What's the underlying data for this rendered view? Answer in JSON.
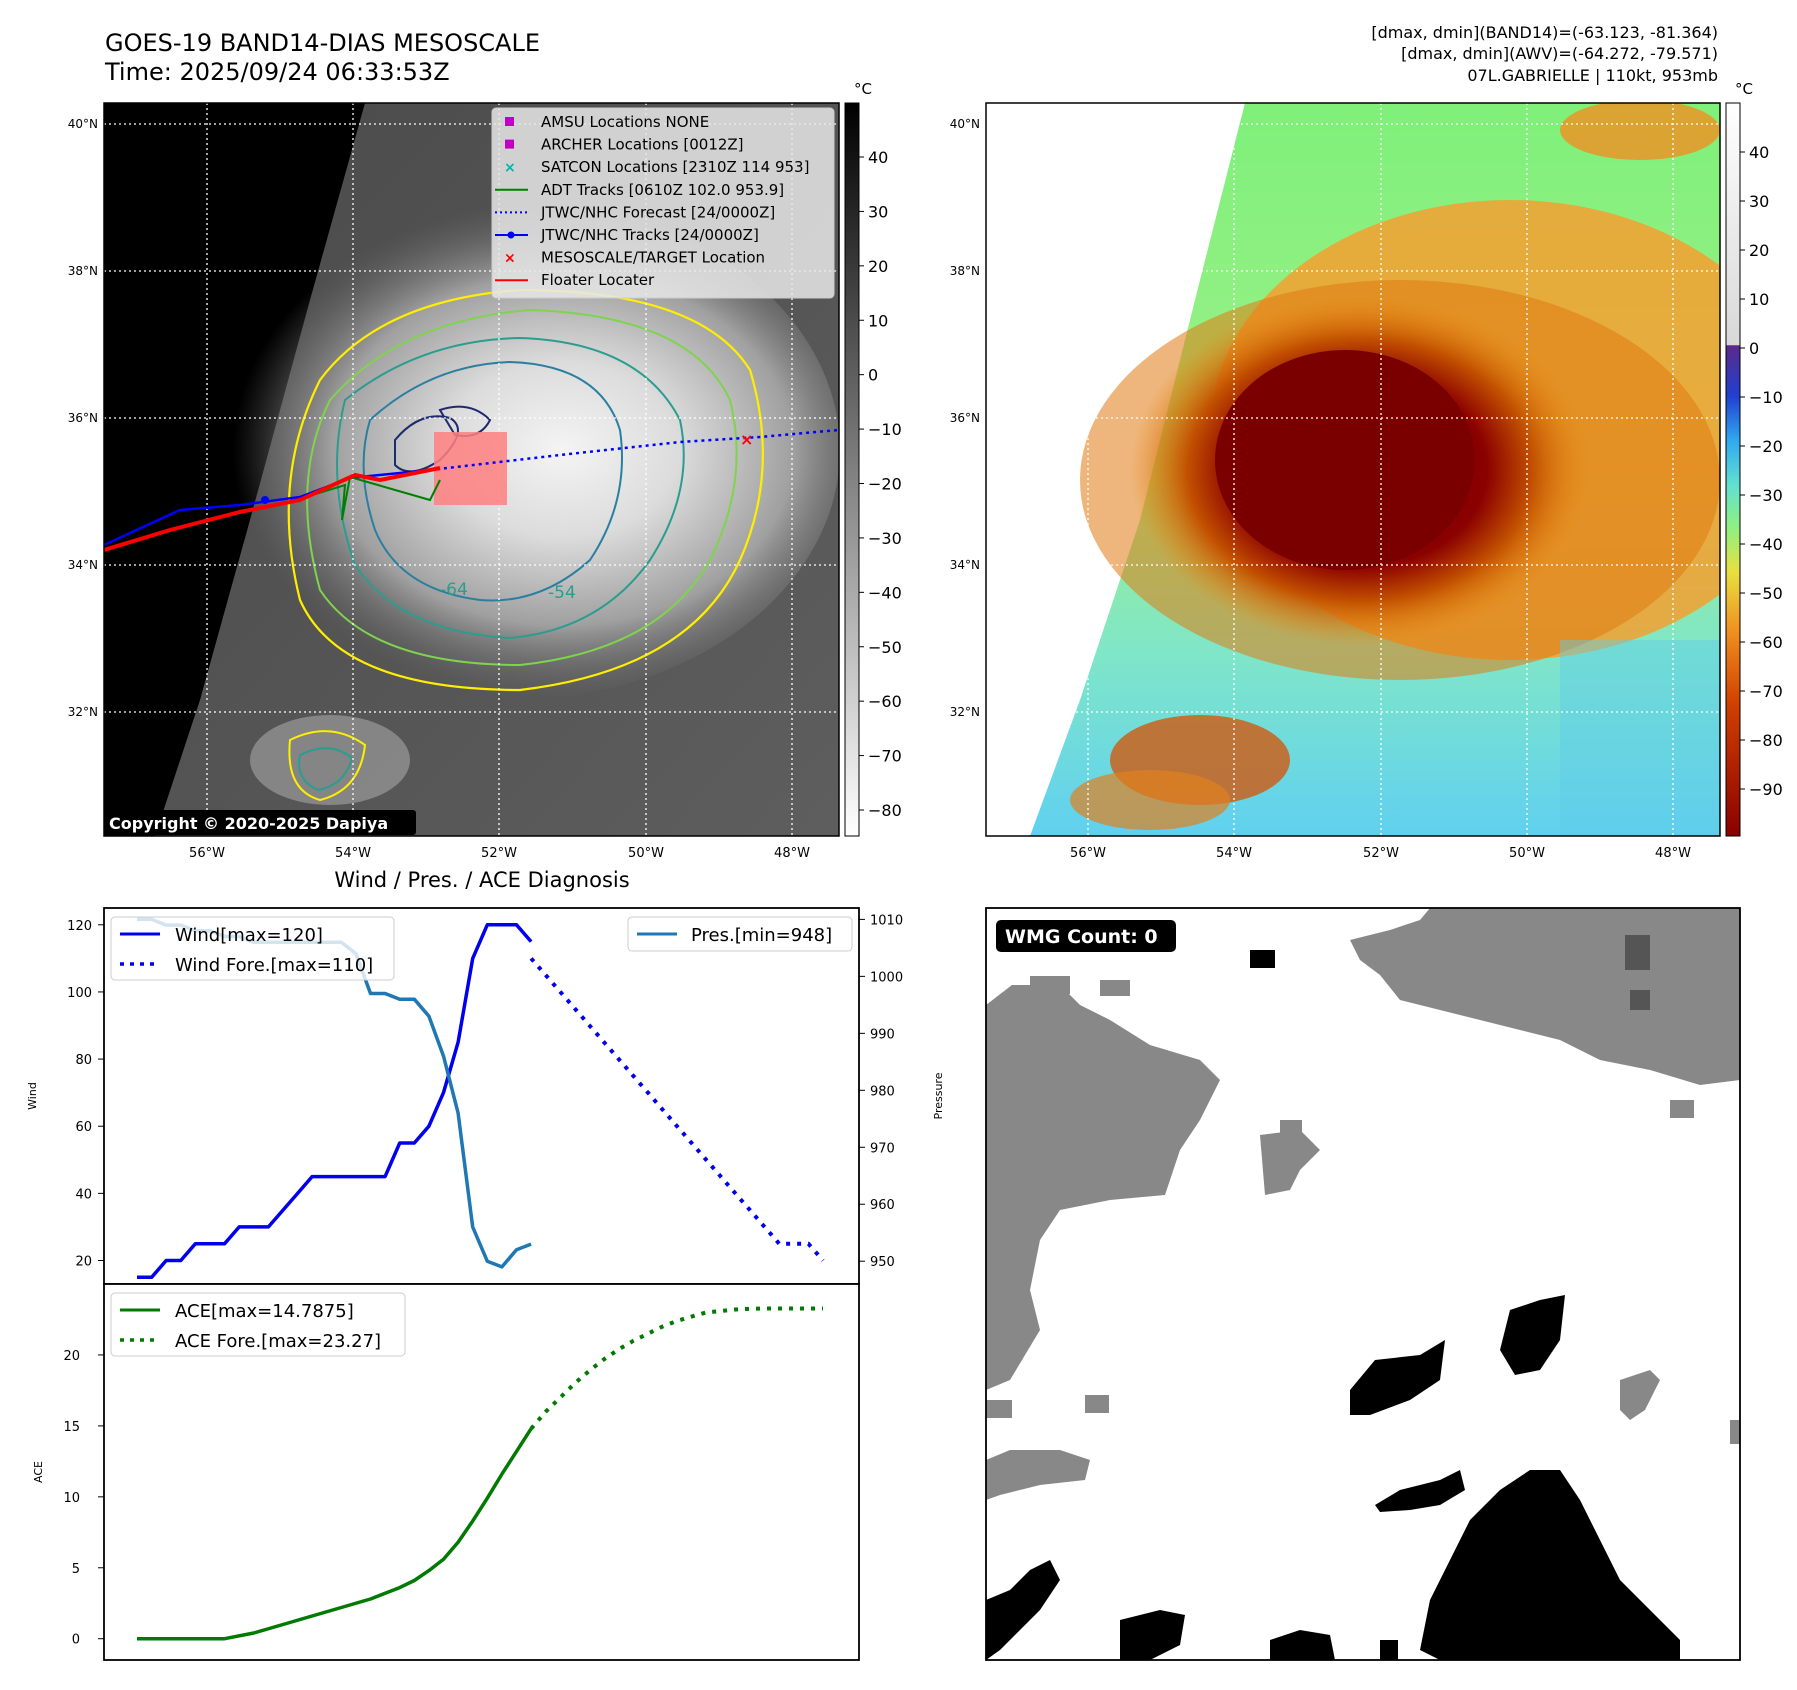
{
  "header": {
    "title_line1": "GOES-19 BAND14-DIAS MESOSCALE",
    "title_line2": "Time: 2025/09/24 06:33:53Z",
    "right_line1": "[dmax, dmin](BAND14)=(-63.123, -81.364)",
    "right_line2": "[dmax, dmin](AWV)=(-64.272, -79.571)",
    "right_line3": "07L.GABRIELLE | 110kt, 953mb"
  },
  "ir_panel": {
    "copyright": "Copyright © 2020-2025 Dapiya",
    "lat_labels": [
      "40°N",
      "38°N",
      "36°N",
      "34°N",
      "32°N"
    ],
    "lon_labels": [
      "56°W",
      "54°W",
      "52°W",
      "50°W",
      "48°W"
    ],
    "contour_labels": [
      "-64",
      "-54"
    ],
    "colorbar_unit": "°C",
    "colorbar_ticks": [
      "40",
      "30",
      "20",
      "10",
      "0",
      "−10",
      "−20",
      "−30",
      "−40",
      "−50",
      "−60",
      "−70",
      "−80"
    ],
    "legend": [
      {
        "label": "AMSU Locations NONE",
        "color": "#c000c0",
        "marker": "square"
      },
      {
        "label": "ARCHER Locations [0012Z]",
        "color": "#c000c0",
        "marker": "square"
      },
      {
        "label": "SATCON Locations [2310Z 114 953]",
        "color": "#00b3b3",
        "marker": "x"
      },
      {
        "label": "ADT Tracks [0610Z 102.0 953.9]",
        "color": "#008000",
        "marker": "line"
      },
      {
        "label": "JTWC/NHC Forecast [24/0000Z]",
        "color": "#0000ff",
        "marker": "dotted"
      },
      {
        "label": "JTWC/NHC Tracks [24/0000Z]",
        "color": "#0000ff",
        "marker": "line-dot"
      },
      {
        "label": "MESOSCALE/TARGET Location",
        "color": "#ff0000",
        "marker": "x"
      },
      {
        "label": "Floater Locater",
        "color": "#ff0000",
        "marker": "line"
      }
    ]
  },
  "awv_panel": {
    "lat_labels": [
      "40°N",
      "38°N",
      "36°N",
      "34°N",
      "32°N"
    ],
    "lon_labels": [
      "56°W",
      "54°W",
      "52°W",
      "50°W",
      "48°W"
    ],
    "colorbar_unit": "°C",
    "colorbar_ticks": [
      "40",
      "30",
      "20",
      "10",
      "0",
      "−10",
      "−20",
      "−30",
      "−40",
      "−50",
      "−60",
      "−70",
      "−80",
      "−90"
    ]
  },
  "wind_panel": {
    "title": "Wind / Pres. / ACE Diagnosis",
    "ylabel_left": "Wind",
    "ylabel_right": "Pressure",
    "legend_wind": "Wind[max=120]",
    "legend_wind_fore": "Wind Fore.[max=110]",
    "legend_pres": "Pres.[min=948]",
    "yticks_left": [
      "20",
      "40",
      "60",
      "80",
      "100",
      "120"
    ],
    "yticks_right": [
      "950",
      "960",
      "970",
      "980",
      "990",
      "1000",
      "1010"
    ]
  },
  "ace_panel": {
    "ylabel": "ACE",
    "legend_ace": "ACE[max=14.7875]",
    "legend_ace_fore": "ACE Fore.[max=23.27]",
    "yticks": [
      "0",
      "5",
      "10",
      "15",
      "20"
    ]
  },
  "wmg_panel": {
    "badge": "WMG Count: 0"
  },
  "colors": {
    "wind": "#0000ee",
    "pressure": "#1f77b4",
    "ace": "#007a00",
    "track_red": "#ff0000",
    "contour_yellow": "#ffee00",
    "contour_green": "#7fd34e",
    "contour_teal": "#2a9d8f",
    "contour_navy": "#1f2a6e"
  },
  "chart_data": [
    {
      "type": "line",
      "title": "Wind / Pres. / ACE Diagnosis",
      "ylabel": "Wind",
      "ylim": [
        13,
        125
      ],
      "series": [
        {
          "name": "Wind[max=120]",
          "x": [
            0,
            1,
            2,
            3,
            4,
            5,
            6,
            7,
            8,
            9,
            10,
            11,
            12,
            13,
            14,
            15,
            16,
            17,
            18,
            19,
            20,
            21,
            22,
            23,
            24,
            25,
            26,
            27
          ],
          "values": [
            15,
            15,
            20,
            20,
            25,
            25,
            25,
            30,
            30,
            30,
            35,
            40,
            45,
            45,
            45,
            45,
            45,
            45,
            55,
            55,
            60,
            70,
            85,
            110,
            120,
            120,
            120,
            115
          ]
        },
        {
          "name": "Wind Fore.[max=110]",
          "x": [
            27,
            28,
            29,
            30,
            31,
            32,
            33,
            34,
            35,
            36,
            37,
            38,
            39,
            40,
            41,
            42,
            43,
            44,
            45,
            46,
            47
          ],
          "values": [
            110,
            105,
            100,
            95,
            90,
            85,
            80,
            75,
            70,
            65,
            60,
            55,
            50,
            45,
            40,
            35,
            30,
            25,
            25,
            25,
            20
          ]
        },
        {
          "name": "Pres.[min=948]",
          "axis": "right",
          "x": [
            0,
            1,
            2,
            3,
            4,
            5,
            6,
            7,
            8,
            9,
            10,
            11,
            12,
            13,
            14,
            15,
            16,
            17,
            18,
            19,
            20,
            21,
            22,
            23,
            24,
            25,
            26,
            27
          ],
          "values": [
            1010,
            1010,
            1009,
            1009,
            1008,
            1008,
            1007,
            1007,
            1006,
            1006,
            1006,
            1006,
            1006,
            1006,
            1006,
            1004,
            997,
            997,
            996,
            996,
            993,
            986,
            976,
            956,
            950,
            949,
            952,
            953
          ]
        }
      ],
      "ylim_right": [
        946,
        1012
      ]
    },
    {
      "type": "line",
      "ylabel": "ACE",
      "ylim": [
        -1.5,
        25
      ],
      "series": [
        {
          "name": "ACE[max=14.7875]",
          "x": [
            0,
            2,
            4,
            6,
            8,
            10,
            12,
            14,
            16,
            18,
            19,
            20,
            21,
            22,
            23,
            24,
            25,
            26,
            27
          ],
          "values": [
            0,
            0,
            0,
            0,
            0.4,
            1.0,
            1.6,
            2.2,
            2.8,
            3.6,
            4.1,
            4.8,
            5.6,
            6.8,
            8.3,
            9.9,
            11.6,
            13.2,
            14.8
          ]
        },
        {
          "name": "ACE Fore.[max=23.27]",
          "x": [
            27,
            28,
            29,
            30,
            31,
            32,
            33,
            34,
            35,
            36,
            37,
            38,
            39,
            40,
            41,
            42,
            43,
            44,
            45,
            46,
            47
          ],
          "values": [
            14.8,
            16.0,
            17.0,
            18.0,
            18.9,
            19.7,
            20.4,
            21.0,
            21.5,
            22.0,
            22.4,
            22.7,
            23.0,
            23.1,
            23.2,
            23.25,
            23.27,
            23.27,
            23.27,
            23.27,
            23.27
          ]
        }
      ]
    }
  ]
}
